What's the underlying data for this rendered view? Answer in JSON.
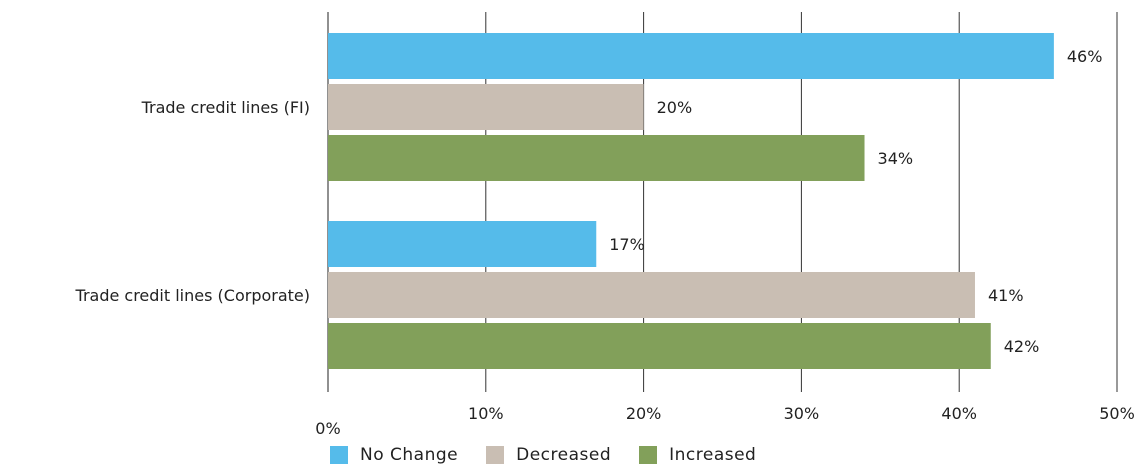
{
  "chart_data": {
    "type": "bar",
    "orientation": "horizontal",
    "categories": [
      "Trade credit lines (FI)",
      "Trade credit lines (Corporate)"
    ],
    "series": [
      {
        "name": "No Change",
        "values": [
          46,
          17
        ],
        "color": "#55bbea"
      },
      {
        "name": "Decreased",
        "values": [
          20,
          41
        ],
        "color": "#c9beb3"
      },
      {
        "name": "Increased",
        "values": [
          34,
          42
        ],
        "color": "#82a05a"
      }
    ],
    "value_labels": [
      [
        "46%",
        "17%"
      ],
      [
        "20%",
        "41%"
      ],
      [
        "34%",
        "42%"
      ]
    ],
    "xlim": [
      0,
      50
    ],
    "x_ticks": [
      0,
      10,
      20,
      30,
      40,
      50
    ],
    "x_tick_labels": [
      "0%",
      "10%",
      "20%",
      "30%",
      "40%",
      "50%"
    ],
    "grid": "vertical",
    "legend_position": "bottom"
  }
}
